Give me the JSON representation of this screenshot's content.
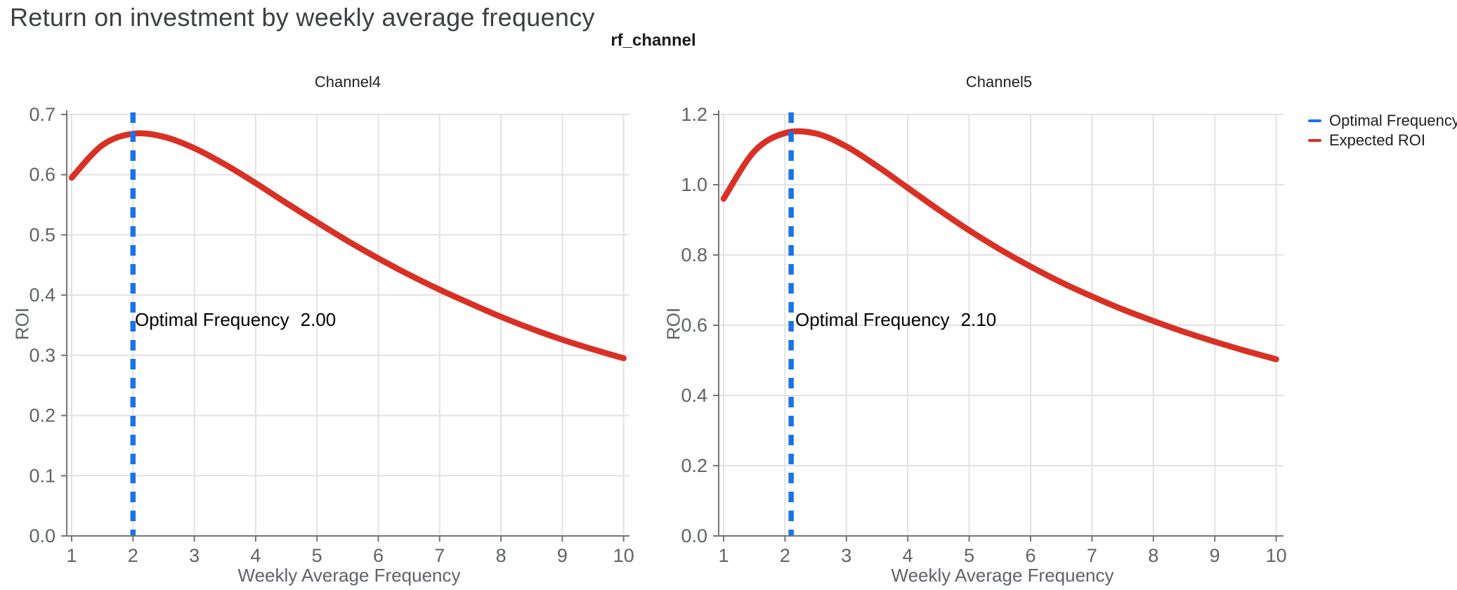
{
  "page": {
    "title": "Return on investment by weekly average frequency",
    "subtitle": "rf_channel"
  },
  "colors": {
    "optimal_blue": "#1a73e8",
    "roi_red": "#d93025",
    "grid": "#e2e2e2",
    "axis": "#757575",
    "tick_label": "#5f6368",
    "title_text": "#3c4043"
  },
  "legend": {
    "items": [
      {
        "label": "Optimal Frequency",
        "color": "#1a73e8"
      },
      {
        "label": "Expected ROI",
        "color": "#d93025"
      }
    ]
  },
  "chart_data": [
    {
      "type": "line",
      "title": "Channel4",
      "xlabel": "Weekly Average Frequency",
      "ylabel": "ROI",
      "xlim": [
        1,
        10
      ],
      "ylim": [
        0,
        0.7
      ],
      "grid": true,
      "x_ticks": [
        1,
        2,
        3,
        4,
        5,
        6,
        7,
        8,
        9,
        10
      ],
      "y_ticks": [
        0,
        0.1,
        0.2,
        0.3,
        0.4,
        0.5,
        0.6,
        0.7
      ],
      "y_tick_labels": [
        "0.0",
        "0.1",
        "0.2",
        "0.3",
        "0.4",
        "0.5",
        "0.6",
        "0.7"
      ],
      "optimal_frequency": 2.0,
      "annotation": {
        "label": "Optimal Frequency",
        "value": "2.00"
      },
      "series": [
        {
          "name": "Expected ROI",
          "color": "#d93025",
          "x": [
            1,
            1.5,
            2,
            2.5,
            3,
            3.5,
            4,
            4.5,
            5,
            5.5,
            6,
            6.5,
            7,
            7.5,
            8,
            8.5,
            9,
            9.5,
            10
          ],
          "y": [
            0.595,
            0.649,
            0.668,
            0.663,
            0.644,
            0.617,
            0.586,
            0.553,
            0.521,
            0.49,
            0.461,
            0.434,
            0.409,
            0.386,
            0.364,
            0.344,
            0.326,
            0.31,
            0.295
          ]
        },
        {
          "name": "Optimal Frequency",
          "color": "#1a73e8",
          "style": "dashed-vertical",
          "x": 2.0
        }
      ]
    },
    {
      "type": "line",
      "title": "Channel5",
      "xlabel": "Weekly Average Frequency",
      "ylabel": "ROI",
      "xlim": [
        1,
        10
      ],
      "ylim": [
        0,
        1.2
      ],
      "grid": true,
      "x_ticks": [
        1,
        2,
        3,
        4,
        5,
        6,
        7,
        8,
        9,
        10
      ],
      "y_ticks": [
        0,
        0.2,
        0.4,
        0.6,
        0.8,
        1.0,
        1.2
      ],
      "y_tick_labels": [
        "0.0",
        "0.2",
        "0.4",
        "0.6",
        "0.8",
        "1.0",
        "1.2"
      ],
      "optimal_frequency": 2.1,
      "annotation": {
        "label": "Optimal Frequency",
        "value": "2.10"
      },
      "series": [
        {
          "name": "Expected ROI",
          "color": "#d93025",
          "x": [
            1,
            1.5,
            2,
            2.5,
            3,
            3.5,
            4,
            4.5,
            5,
            5.5,
            6,
            6.5,
            7,
            7.5,
            8,
            8.5,
            9,
            9.5,
            10
          ],
          "y": [
            0.96,
            1.095,
            1.147,
            1.146,
            1.109,
            1.053,
            0.991,
            0.929,
            0.87,
            0.816,
            0.767,
            0.722,
            0.682,
            0.645,
            0.612,
            0.581,
            0.553,
            0.527,
            0.503
          ]
        },
        {
          "name": "Optimal Frequency",
          "color": "#1a73e8",
          "style": "dashed-vertical",
          "x": 2.1
        }
      ]
    }
  ]
}
